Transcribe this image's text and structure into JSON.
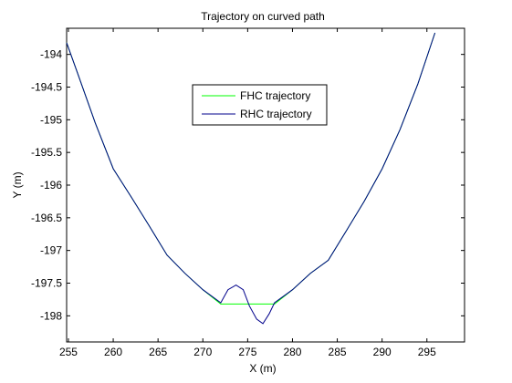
{
  "chart_data": {
    "type": "line",
    "title": "Trajectory on curved path",
    "xlabel": "X (m)",
    "ylabel": "Y (m)",
    "xlim": [
      254.8,
      299.2
    ],
    "ylim": [
      -198.4,
      -193.6
    ],
    "xticks": [
      255,
      260,
      265,
      270,
      275,
      280,
      285,
      290,
      295
    ],
    "xtick_labels": [
      "255",
      "260",
      "265",
      "270",
      "275",
      "280",
      "285",
      "290",
      "295"
    ],
    "yticks": [
      -194,
      -194.5,
      -195,
      -195.5,
      -196,
      -196.5,
      -197,
      -197.5,
      -198
    ],
    "ytick_labels": [
      "-194",
      "-194.5",
      "-195",
      "-195.5",
      "-196",
      "-196.5",
      "-197",
      "-197.5",
      "-198"
    ],
    "grid": false,
    "legend_position": "top-center",
    "series": [
      {
        "name": "FHC trajectory",
        "color": "#00ff00",
        "x": [
          254.8,
          256,
          258,
          260,
          262,
          264,
          266,
          268,
          270,
          272,
          274,
          276,
          278,
          280,
          282,
          284,
          286,
          288,
          290,
          292,
          294,
          295.9
        ],
        "y": [
          -193.82,
          -194.28,
          -195.05,
          -195.75,
          -196.18,
          -196.62,
          -197.07,
          -197.35,
          -197.6,
          -197.82,
          -197.82,
          -197.82,
          -197.82,
          -197.6,
          -197.35,
          -197.15,
          -196.7,
          -196.25,
          -195.75,
          -195.15,
          -194.45,
          -193.67
        ]
      },
      {
        "name": "RHC trajectory",
        "color": "#00008b",
        "x": [
          254.8,
          256,
          258,
          260,
          262,
          264,
          266,
          268,
          270,
          272,
          272.8,
          273.7,
          274.5,
          275.2,
          276,
          276.7,
          277.4,
          278,
          280,
          282,
          284,
          286,
          288,
          290,
          292,
          294,
          295.9
        ],
        "y": [
          -193.82,
          -194.28,
          -195.05,
          -195.75,
          -196.18,
          -196.62,
          -197.07,
          -197.35,
          -197.6,
          -197.8,
          -197.6,
          -197.53,
          -197.6,
          -197.85,
          -198.05,
          -198.12,
          -197.97,
          -197.8,
          -197.6,
          -197.35,
          -197.15,
          -196.7,
          -196.25,
          -195.75,
          -195.15,
          -194.45,
          -193.67
        ]
      }
    ]
  }
}
